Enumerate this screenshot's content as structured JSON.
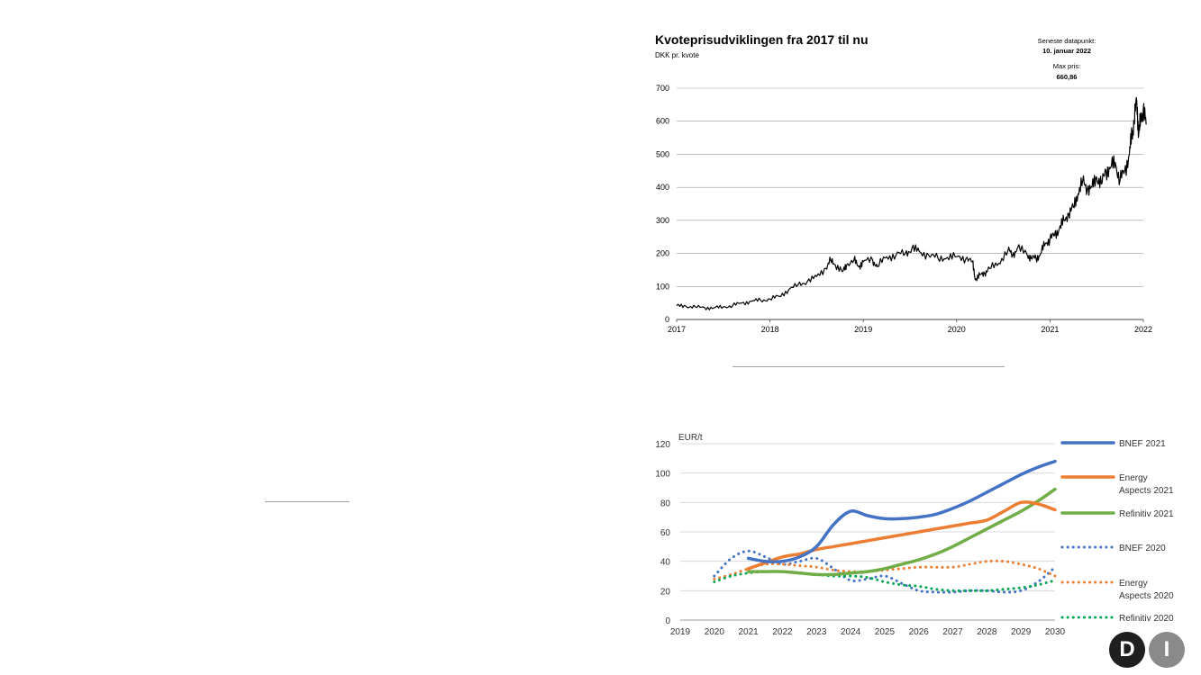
{
  "chart_data": [
    {
      "type": "line",
      "title": "Kvoteprisudviklingen fra 2017 til nu",
      "subtitle": "DKK pr. kvote",
      "annotations": {
        "latest_label": "Seneste datapunkt:",
        "latest_value": "10. januar 2022",
        "max_label": "Max pris:",
        "max_value": "660,86"
      },
      "x_ticks": [
        "2017",
        "2018",
        "2019",
        "2020",
        "2021",
        "2022"
      ],
      "xlim": [
        2017,
        2022
      ],
      "y_ticks": [
        "0",
        "100",
        "200",
        "300",
        "400",
        "500",
        "600",
        "700"
      ],
      "ylim": [
        0,
        700
      ],
      "grid": true,
      "series": [
        {
          "name": "Kvotepris",
          "color": "#000000",
          "points": [
            [
              2017.0,
              42
            ],
            [
              2017.1,
              40
            ],
            [
              2017.2,
              38
            ],
            [
              2017.3,
              36
            ],
            [
              2017.4,
              35
            ],
            [
              2017.5,
              38
            ],
            [
              2017.6,
              42
            ],
            [
              2017.7,
              50
            ],
            [
              2017.8,
              55
            ],
            [
              2017.9,
              58
            ],
            [
              2018.0,
              62
            ],
            [
              2018.1,
              70
            ],
            [
              2018.2,
              90
            ],
            [
              2018.3,
              105
            ],
            [
              2018.4,
              115
            ],
            [
              2018.5,
              130
            ],
            [
              2018.6,
              155
            ],
            [
              2018.65,
              180
            ],
            [
              2018.7,
              165
            ],
            [
              2018.78,
              145
            ],
            [
              2018.82,
              165
            ],
            [
              2018.9,
              180
            ],
            [
              2018.95,
              160
            ],
            [
              2019.0,
              175
            ],
            [
              2019.1,
              180
            ],
            [
              2019.15,
              160
            ],
            [
              2019.25,
              190
            ],
            [
              2019.35,
              195
            ],
            [
              2019.45,
              200
            ],
            [
              2019.52,
              215
            ],
            [
              2019.6,
              205
            ],
            [
              2019.7,
              195
            ],
            [
              2019.8,
              185
            ],
            [
              2019.9,
              188
            ],
            [
              2020.0,
              190
            ],
            [
              2020.1,
              185
            ],
            [
              2020.17,
              175
            ],
            [
              2020.2,
              120
            ],
            [
              2020.25,
              135
            ],
            [
              2020.3,
              140
            ],
            [
              2020.35,
              155
            ],
            [
              2020.45,
              170
            ],
            [
              2020.55,
              210
            ],
            [
              2020.6,
              195
            ],
            [
              2020.65,
              215
            ],
            [
              2020.75,
              200
            ],
            [
              2020.8,
              185
            ],
            [
              2020.85,
              185
            ],
            [
              2020.9,
              200
            ],
            [
              2020.95,
              230
            ],
            [
              2021.0,
              245
            ],
            [
              2021.05,
              255
            ],
            [
              2021.1,
              275
            ],
            [
              2021.15,
              300
            ],
            [
              2021.2,
              320
            ],
            [
              2021.25,
              340
            ],
            [
              2021.3,
              380
            ],
            [
              2021.35,
              420
            ],
            [
              2021.4,
              395
            ],
            [
              2021.45,
              400
            ],
            [
              2021.5,
              430
            ],
            [
              2021.55,
              410
            ],
            [
              2021.6,
              450
            ],
            [
              2021.65,
              460
            ],
            [
              2021.7,
              475
            ],
            [
              2021.75,
              420
            ],
            [
              2021.8,
              450
            ],
            [
              2021.85,
              500
            ],
            [
              2021.88,
              560
            ],
            [
              2021.9,
              600
            ],
            [
              2021.93,
              661
            ],
            [
              2021.95,
              560
            ],
            [
              2021.97,
              600
            ],
            [
              2022.0,
              640
            ],
            [
              2022.03,
              590
            ]
          ]
        }
      ]
    },
    {
      "type": "line",
      "title": "",
      "ylabel": "EUR/t",
      "categories": [
        "2019",
        "2020",
        "2021",
        "2022",
        "2023",
        "2024",
        "2025",
        "2026",
        "2027",
        "2028",
        "2029",
        "2030"
      ],
      "xlim": [
        2019,
        2030
      ],
      "ylim": [
        0,
        120
      ],
      "y_ticks": [
        "0",
        "20",
        "40",
        "60",
        "80",
        "100",
        "120"
      ],
      "grid": true,
      "legend_position": "right",
      "series": [
        {
          "name": "BNEF 2021",
          "legend_line1": "BNEF 2021",
          "legend_line2": "",
          "color": "#4472c4",
          "style": "solid",
          "x": [
            2021,
            2021.5,
            2022,
            2022.5,
            2023,
            2023.5,
            2024,
            2024.5,
            2025,
            2025.5,
            2026,
            2026.5,
            2027,
            2027.5,
            2028,
            2028.5,
            2029,
            2029.5,
            2030
          ],
          "values": [
            42,
            40,
            40,
            43,
            50,
            65,
            74,
            71,
            69,
            69,
            70,
            72,
            76,
            81,
            87,
            93,
            99,
            104,
            108
          ]
        },
        {
          "name": "Energy Aspects 2021",
          "legend_line1": "Energy",
          "legend_line2": "Aspects 2021",
          "color": "#ed7d31",
          "style": "solid",
          "x": [
            2021,
            2021.5,
            2022,
            2022.5,
            2023,
            2023.5,
            2024,
            2024.5,
            2025,
            2025.5,
            2026,
            2026.5,
            2027,
            2027.5,
            2028,
            2028.5,
            2029,
            2029.5,
            2030
          ],
          "values": [
            35,
            39,
            43,
            45,
            48,
            50,
            52,
            54,
            56,
            58,
            60,
            62,
            64,
            66,
            68,
            74,
            80,
            79,
            75
          ]
        },
        {
          "name": "Refinitiv 2021",
          "legend_line1": "Refinitiv 2021",
          "legend_line2": "",
          "color": "#70ad47",
          "style": "solid",
          "x": [
            2021,
            2021.5,
            2022,
            2022.5,
            2023,
            2023.5,
            2024,
            2024.5,
            2025,
            2025.5,
            2026,
            2026.5,
            2027,
            2027.5,
            2028,
            2028.5,
            2029,
            2029.5,
            2030
          ],
          "values": [
            33,
            33,
            33,
            32,
            31,
            31,
            32,
            33,
            35,
            38,
            41,
            45,
            50,
            56,
            62,
            68,
            74,
            81,
            89
          ]
        },
        {
          "name": "BNEF 2020",
          "legend_line1": "BNEF 2020",
          "legend_line2": "",
          "color": "#4472c4",
          "style": "dotted",
          "x": [
            2020,
            2020.5,
            2021,
            2021.5,
            2022,
            2022.5,
            2023,
            2023.5,
            2024,
            2024.5,
            2025,
            2025.5,
            2026,
            2026.5,
            2027,
            2027.5,
            2028,
            2028.5,
            2029,
            2029.5,
            2030
          ],
          "values": [
            30,
            42,
            47,
            43,
            38,
            40,
            42,
            35,
            27,
            28,
            30,
            25,
            20,
            19,
            19,
            20,
            20,
            19,
            20,
            26,
            36
          ]
        },
        {
          "name": "Energy Aspects 2020",
          "legend_line1": "Energy",
          "legend_line2": "Aspects 2020",
          "color": "#ed7d31",
          "style": "dotted",
          "x": [
            2020,
            2020.5,
            2021,
            2021.5,
            2022,
            2022.5,
            2023,
            2023.5,
            2024,
            2024.5,
            2025,
            2025.5,
            2026,
            2026.5,
            2027,
            2027.5,
            2028,
            2028.5,
            2029,
            2029.5,
            2030
          ],
          "values": [
            28,
            31,
            35,
            38,
            38,
            37,
            36,
            34,
            33,
            33,
            34,
            35,
            36,
            36,
            36,
            38,
            40,
            40,
            38,
            35,
            30
          ]
        },
        {
          "name": "Refinitiv 2020",
          "legend_line1": "Refinitiv 2020",
          "legend_line2": "",
          "color": "#00a651",
          "style": "dotted",
          "x": [
            2020,
            2020.5,
            2021,
            2021.5,
            2022,
            2022.5,
            2023,
            2023.5,
            2024,
            2024.5,
            2025,
            2025.5,
            2026,
            2026.5,
            2027,
            2027.5,
            2028,
            2028.5,
            2029,
            2029.5,
            2030
          ],
          "values": [
            26,
            30,
            32,
            33,
            33,
            32,
            31,
            30,
            30,
            29,
            26,
            24,
            23,
            21,
            20,
            20,
            20,
            21,
            22,
            24,
            27
          ]
        }
      ]
    }
  ],
  "logo": {
    "left": "D",
    "right": "I"
  }
}
